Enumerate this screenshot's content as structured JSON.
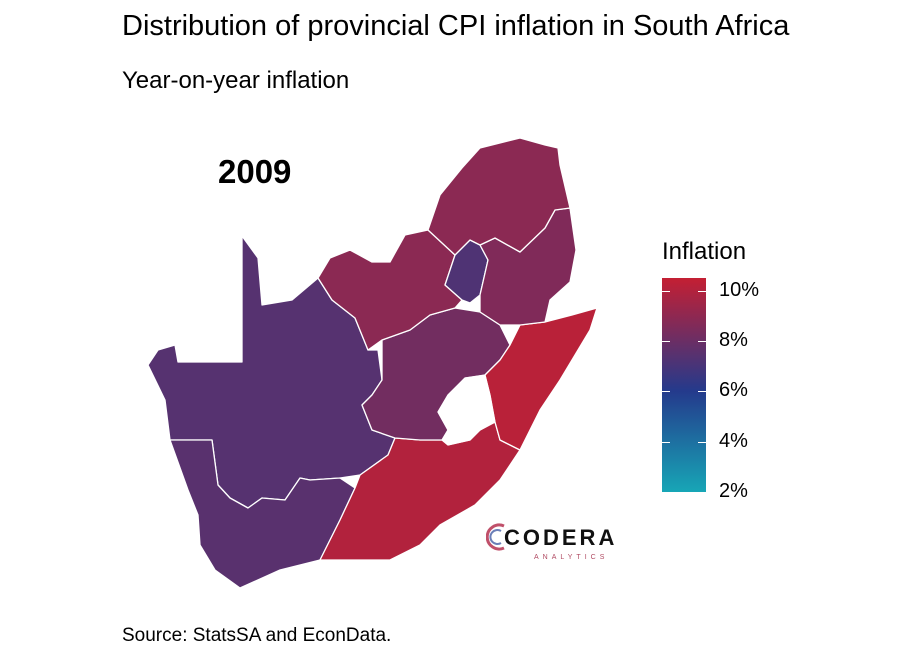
{
  "chart_data": {
    "type": "choropleth",
    "title": "Distribution of provincial CPI inflation in South Africa",
    "subtitle": "Year-on-year inflation",
    "year_label": "2009",
    "caption": "Source: StatsSA and EconData.",
    "legend": {
      "title": "Inflation",
      "ticks": [
        {
          "value": 10,
          "label": "10%"
        },
        {
          "value": 8,
          "label": "8%"
        },
        {
          "value": 6,
          "label": "6%"
        },
        {
          "value": 4,
          "label": "4%"
        },
        {
          "value": 2,
          "label": "2%"
        }
      ],
      "range": [
        2,
        10.5
      ],
      "colors": {
        "low": "#17a6b6",
        "mid": "#243a8c",
        "high": "#c41f33"
      }
    },
    "regions": [
      {
        "name": "Limpopo",
        "value": 8.9
      },
      {
        "name": "Mpumalanga",
        "value": 8.6
      },
      {
        "name": "Gauteng",
        "value": 7.2
      },
      {
        "name": "North West",
        "value": 8.9
      },
      {
        "name": "Free State",
        "value": 8.2
      },
      {
        "name": "KwaZulu-Natal",
        "value": 10.2
      },
      {
        "name": "Northern Cape",
        "value": 7.4
      },
      {
        "name": "Western Cape",
        "value": 7.5
      },
      {
        "name": "Eastern Cape",
        "value": 10.0
      }
    ]
  },
  "logo": {
    "word": "CODERA",
    "sub": "ANALYTICS"
  }
}
